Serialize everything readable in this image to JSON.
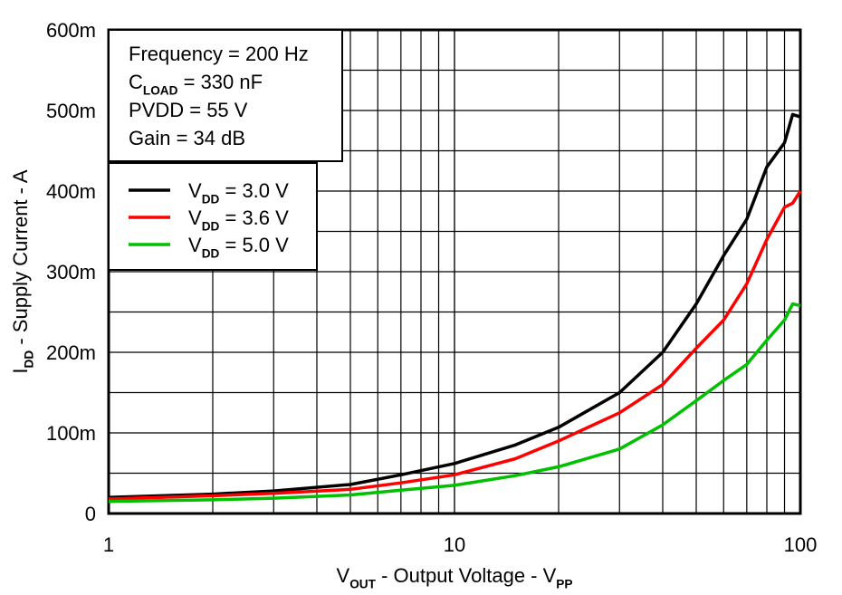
{
  "chart_data": {
    "type": "line",
    "xscale": "log",
    "xlim": [
      1,
      100
    ],
    "ylim": [
      0,
      0.6
    ],
    "grid": true,
    "xlabel": {
      "main": "V",
      "sub": "OUT",
      "rest": " - Output Voltage - V",
      "sub2": "PP"
    },
    "ylabel": {
      "main": "I",
      "sub": "DD",
      "rest": " - Supply Current - A"
    },
    "xticks": [
      {
        "v": 1,
        "label": "1"
      },
      {
        "v": 10,
        "label": "10"
      },
      {
        "v": 100,
        "label": "100"
      }
    ],
    "yticks": [
      {
        "v": 0,
        "label": "0"
      },
      {
        "v": 0.1,
        "label": "100m"
      },
      {
        "v": 0.2,
        "label": "200m"
      },
      {
        "v": 0.3,
        "label": "300m"
      },
      {
        "v": 0.4,
        "label": "400m"
      },
      {
        "v": 0.5,
        "label": "500m"
      },
      {
        "v": 0.6,
        "label": "600m"
      }
    ],
    "annotation": [
      {
        "main": "Frequency = 200 Hz"
      },
      {
        "main": "C",
        "sub": "LOAD",
        "rest": " = 330 nF"
      },
      {
        "main": "PVDD = 55 V"
      },
      {
        "main": "Gain = 34 dB"
      }
    ],
    "legend_position": "top-left",
    "x": [
      1,
      2,
      3,
      5,
      7,
      10,
      15,
      20,
      30,
      40,
      50,
      60,
      70,
      80,
      90,
      95,
      100
    ],
    "series": [
      {
        "name": "V_DD = 3.0 V",
        "label": {
          "main": "V",
          "sub": "DD",
          "rest": " = 3.0 V"
        },
        "color": "#000000",
        "values": [
          0.02,
          0.024,
          0.028,
          0.036,
          0.048,
          0.062,
          0.085,
          0.107,
          0.15,
          0.2,
          0.26,
          0.32,
          0.365,
          0.43,
          0.46,
          0.495,
          0.492
        ]
      },
      {
        "name": "V_DD = 3.6 V",
        "label": {
          "main": "V",
          "sub": "DD",
          "rest": " = 3.6 V"
        },
        "color": "#ff0000",
        "values": [
          0.018,
          0.022,
          0.025,
          0.03,
          0.038,
          0.048,
          0.068,
          0.09,
          0.125,
          0.16,
          0.205,
          0.24,
          0.285,
          0.34,
          0.38,
          0.385,
          0.4
        ]
      },
      {
        "name": "V_DD = 5.0 V",
        "label": {
          "main": "V",
          "sub": "DD",
          "rest": " = 5.0 V"
        },
        "color": "#00c000",
        "values": [
          0.015,
          0.017,
          0.019,
          0.023,
          0.029,
          0.035,
          0.047,
          0.058,
          0.08,
          0.11,
          0.14,
          0.165,
          0.185,
          0.215,
          0.24,
          0.26,
          0.258
        ]
      }
    ]
  }
}
